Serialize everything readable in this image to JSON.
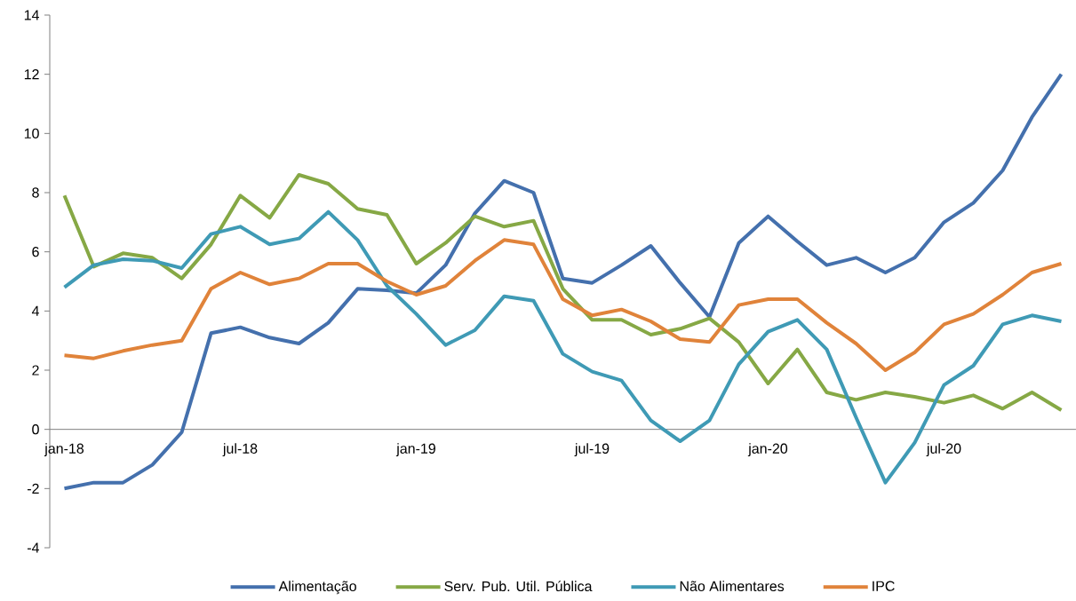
{
  "chart_data": {
    "type": "line",
    "categories": [
      "jan-18",
      null,
      null,
      null,
      null,
      null,
      "jul-18",
      null,
      null,
      null,
      null,
      null,
      "jan-19",
      null,
      null,
      null,
      null,
      null,
      "jul-19",
      null,
      null,
      null,
      null,
      null,
      "jan-20",
      null,
      null,
      null,
      null,
      null,
      "jul-20",
      null,
      null,
      null,
      null
    ],
    "series": [
      {
        "name": "Alimentação",
        "color": "#4470ad",
        "values": [
          -2.0,
          -1.8,
          -1.8,
          -1.2,
          -0.1,
          3.25,
          3.45,
          3.1,
          2.9,
          3.6,
          4.75,
          4.7,
          4.6,
          5.55,
          7.3,
          8.4,
          8.0,
          5.1,
          4.95,
          5.55,
          6.2,
          4.95,
          3.8,
          6.3,
          7.2,
          6.35,
          5.55,
          5.8,
          5.3,
          5.8,
          7.0,
          7.65,
          8.75,
          10.55,
          12.0
        ]
      },
      {
        "name": "Serv. Pub. Util.  Pública",
        "color": "#86a845",
        "values": [
          7.9,
          5.5,
          5.95,
          5.8,
          5.1,
          6.25,
          7.9,
          7.15,
          8.6,
          8.3,
          7.45,
          7.25,
          5.6,
          6.3,
          7.2,
          6.85,
          7.05,
          4.75,
          3.7,
          3.7,
          3.2,
          3.4,
          3.75,
          2.95,
          1.55,
          2.7,
          1.25,
          1.0,
          1.25,
          1.1,
          0.9,
          1.15,
          0.7,
          1.25,
          0.65
        ]
      },
      {
        "name": "Não Alimentares",
        "color": "#3f9ab5",
        "values": [
          4.8,
          5.55,
          5.75,
          5.7,
          5.45,
          6.6,
          6.85,
          6.25,
          6.45,
          7.35,
          6.4,
          4.85,
          3.9,
          2.85,
          3.35,
          4.5,
          4.35,
          2.55,
          1.95,
          1.65,
          0.3,
          -0.4,
          0.3,
          2.2,
          3.3,
          3.7,
          2.7,
          0.4,
          -1.8,
          -0.45,
          1.5,
          2.15,
          3.55,
          3.85,
          3.65
        ]
      },
      {
        "name": "IPC",
        "color": "#e0833a",
        "values": [
          2.5,
          2.4,
          2.65,
          2.85,
          3.0,
          4.75,
          5.3,
          4.9,
          5.1,
          5.6,
          5.6,
          5.0,
          4.55,
          4.85,
          5.7,
          6.4,
          6.25,
          4.4,
          3.85,
          4.05,
          3.65,
          3.05,
          2.95,
          4.2,
          4.4,
          4.4,
          3.6,
          2.9,
          2.0,
          2.6,
          3.55,
          3.9,
          4.55,
          5.3,
          5.6
        ]
      }
    ],
    "ylim": [
      -4,
      14
    ],
    "yticks": [
      -4,
      -2,
      0,
      2,
      4,
      6,
      8,
      10,
      12,
      14
    ],
    "grid": false,
    "legend": "bottom",
    "marker": "none",
    "line_style": "solid"
  }
}
